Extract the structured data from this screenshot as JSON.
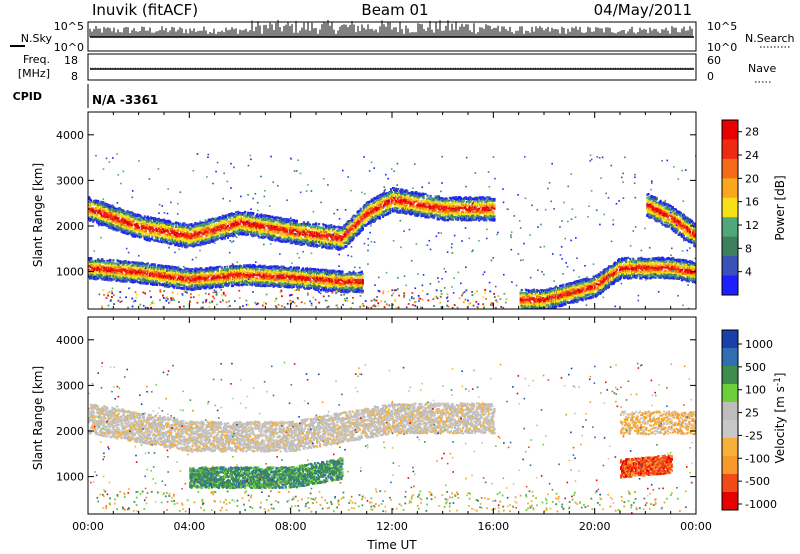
{
  "header": {
    "station": "Inuvik (fitACF)",
    "beam": "Beam 01",
    "date": "04/May/2011"
  },
  "status_panel": {
    "left_top_label": "N.Sky",
    "left_top_ticks": [
      "10^5",
      "10^0"
    ],
    "right_top_label": "N.Search",
    "right_top_ticks": [
      "10^5",
      "10^0"
    ],
    "freq_label_1": "Freq.",
    "freq_label_2": "[MHz]",
    "freq_ticks": [
      "18",
      "8"
    ],
    "nave_label": "Nave",
    "nave_ticks": [
      "60",
      "0"
    ],
    "cpid_label": "CPID",
    "cpid_value": "N/A -3361"
  },
  "colors": {
    "power_scale": [
      "#1e1eff",
      "#3a52b8",
      "#3f7f5e",
      "#4fa87a",
      "#f7e015",
      "#f9a81d",
      "#f46a17",
      "#f02a12",
      "#e60000"
    ],
    "velocity_scale": [
      "#e60000",
      "#f24a17",
      "#f59a2a",
      "#f5b13a",
      "#c8c8c8",
      "#bdbdbd",
      "#6ccf3c",
      "#3f8c4f",
      "#2f6eb0",
      "#1a3fa8"
    ]
  },
  "chart_data": [
    {
      "type": "heatmap",
      "name": "power",
      "ylabel": "Slant Range [km]",
      "xlabel": "",
      "y_ticks": [
        "4000",
        "3000",
        "2000",
        "1000"
      ],
      "ylim": [
        180,
        4500
      ],
      "xlim": [
        "00:00",
        "24:00"
      ],
      "colorbar": {
        "label": "Power [dB]",
        "ticks": [
          "28",
          "24",
          "20",
          "16",
          "12",
          "8",
          "4"
        ],
        "range": [
          0,
          30
        ]
      },
      "features": [
        {
          "band": "upper",
          "times_h": [
            0,
            2,
            4,
            6,
            8,
            10,
            11,
            12,
            14,
            16,
            18,
            20,
            22,
            23,
            24
          ],
          "range_km": [
            2400,
            2000,
            1800,
            2100,
            1900,
            1750,
            2300,
            2600,
            2400,
            2400,
            null,
            null,
            2500,
            2200,
            1800
          ]
        },
        {
          "band": "lower",
          "times_h": [
            0,
            2,
            4,
            6,
            8,
            10,
            11,
            16,
            17,
            18,
            20,
            21,
            22,
            23,
            24
          ],
          "range_km": [
            1100,
            1000,
            850,
            950,
            900,
            800,
            800,
            null,
            400,
            400,
            700,
            1100,
            1100,
            1100,
            1000
          ]
        }
      ]
    },
    {
      "type": "heatmap",
      "name": "velocity",
      "ylabel": "Slant Range [km]",
      "xlabel": "Time UT",
      "y_ticks": [
        "4000",
        "3000",
        "2000",
        "1000"
      ],
      "ylim": [
        180,
        4500
      ],
      "xlim": [
        "00:00",
        "24:00"
      ],
      "x_ticks": [
        "00:00",
        "04:00",
        "08:00",
        "12:00",
        "16:00",
        "20:00",
        "00:00"
      ],
      "colorbar": {
        "label": "Velocity [m s^-1]",
        "ticks": [
          "1000",
          "500",
          "100",
          "25",
          "-25",
          "-100",
          "-500",
          "-1000"
        ]
      },
      "features": [
        {
          "band": "upper",
          "velocity": "near zero (-25 to 25)",
          "times_h": [
            0,
            4,
            8,
            12,
            16
          ],
          "range_km": [
            2300,
            1900,
            1900,
            2300,
            2300
          ]
        },
        {
          "band": "lower",
          "velocity": "100 to 500",
          "times_h": [
            4,
            8,
            10
          ],
          "range_km": [
            1000,
            1000,
            1200
          ]
        },
        {
          "band": "evening",
          "velocity": "-500 to -1000",
          "times_h": [
            21,
            23
          ],
          "range_km": [
            1200,
            1300
          ]
        }
      ]
    }
  ]
}
